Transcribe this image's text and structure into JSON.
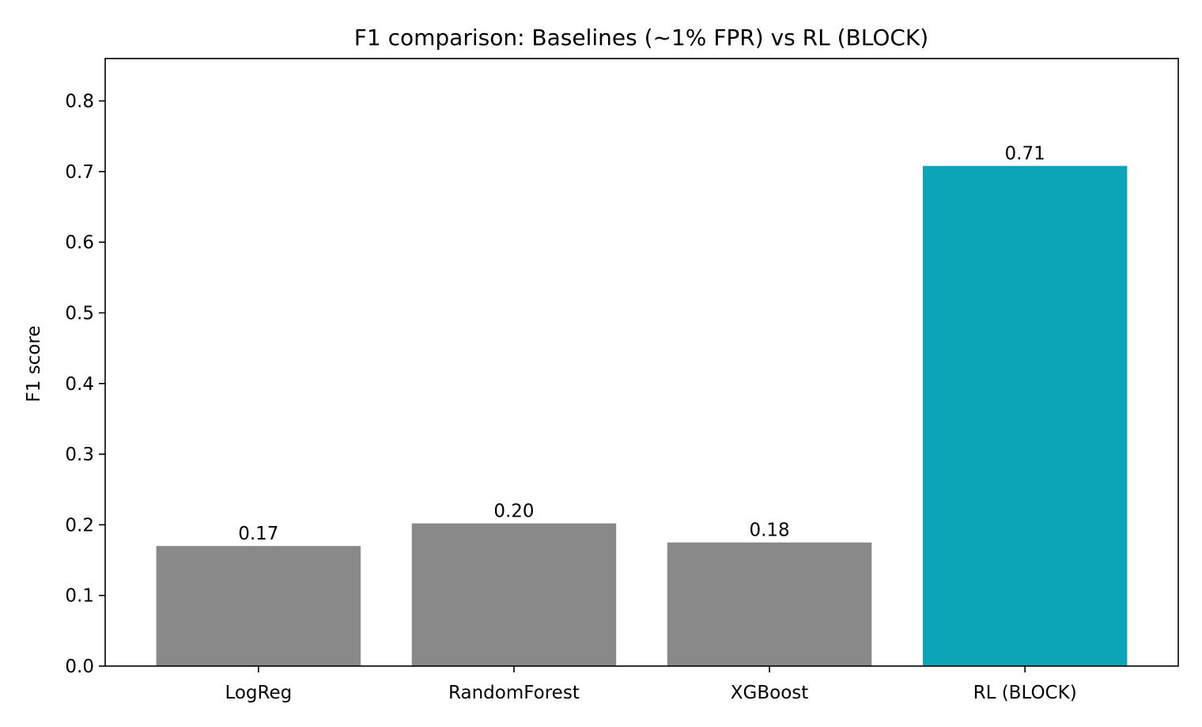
{
  "chart_data": {
    "type": "bar",
    "title": "F1 comparison: Baselines (~1% FPR) vs RL (BLOCK)",
    "xlabel": "",
    "ylabel": "F1 score",
    "categories": [
      "LogReg",
      "RandomForest",
      "XGBoost",
      "RL (BLOCK)"
    ],
    "values": [
      0.17,
      0.202,
      0.175,
      0.708
    ],
    "value_labels": [
      "0.17",
      "0.20",
      "0.18",
      "0.71"
    ],
    "colors": [
      "#898989",
      "#898989",
      "#898989",
      "#0ba5b7"
    ],
    "ylim": [
      0,
      0.86
    ],
    "yticks": [
      0.0,
      0.1,
      0.2,
      0.3,
      0.4,
      0.5,
      0.6,
      0.7,
      0.8
    ],
    "ytick_labels": [
      "0.0",
      "0.1",
      "0.2",
      "0.3",
      "0.4",
      "0.5",
      "0.6",
      "0.7",
      "0.8"
    ],
    "grid": false,
    "legend": "none"
  }
}
